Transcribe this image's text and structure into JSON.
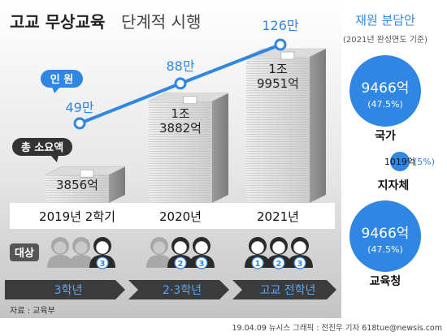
{
  "chart_data": {
    "type": "line",
    "title": "고교 무상교육",
    "subtitle": "단계적 시행",
    "categories": [
      "2019년 2학기",
      "2020년",
      "2021년"
    ],
    "series": [
      {
        "name": "인 원",
        "values": [
          49,
          88,
          126
        ],
        "labels": [
          "49만",
          "88만",
          "126만"
        ]
      }
    ],
    "bars": {
      "name": "총 소요액",
      "values": [
        3856,
        13882,
        19951
      ],
      "labels": [
        [
          "3856억"
        ],
        [
          "1조",
          "3882억"
        ],
        [
          "1조",
          "9951억"
        ]
      ]
    },
    "targets": {
      "label": "대상",
      "arrows": [
        "3학년",
        "2·3학년",
        "고교 전학년"
      ],
      "grades": [
        [
          "3"
        ],
        [
          "2",
          "3"
        ],
        [
          "1",
          "2",
          "3"
        ]
      ]
    },
    "funding": {
      "title": "재원 분담안",
      "subtitle": "(2021년 완성연도 기준)",
      "items": [
        {
          "name": "국가",
          "amount": "9466억",
          "pct": "(47.5%)",
          "share": 47.5
        },
        {
          "name": "지자체",
          "amount": "1019억",
          "pct": "(5%)",
          "share": 5
        },
        {
          "name": "교육청",
          "amount": "9466억",
          "pct": "(47.5%)",
          "share": 47.5
        }
      ]
    },
    "colors": {
      "line": "#2f86e3",
      "title_text": "#2f86e3",
      "bubble": "#2f86e3",
      "arrow_dark": "#3b3b3b",
      "arrow_blue": "#2f86e3"
    }
  },
  "footer": {
    "source": "자료 : 교육부",
    "credit": "19.04.09 뉴시스 그래픽 : 전진우 기자 618tue@newsis.com"
  }
}
